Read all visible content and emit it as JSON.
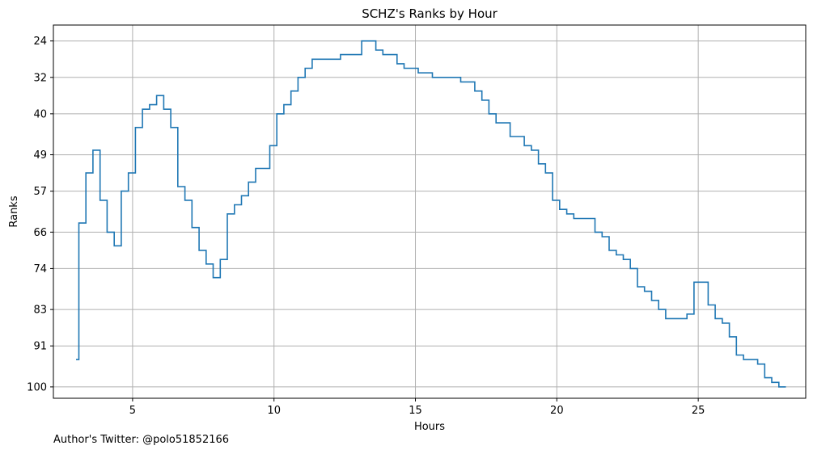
{
  "footer": {
    "author_note": "Author's Twitter: @polo51852166"
  },
  "chart_data": {
    "type": "line",
    "step": true,
    "title": "SCHZ's Ranks by Hour",
    "xlabel": "Hours",
    "ylabel": "Ranks",
    "xlim": [
      2.2,
      28.8
    ],
    "ylim": [
      102.5,
      20.5
    ],
    "y_inverted": true,
    "grid": true,
    "line_color": "#1f77b4",
    "xticks": [
      5,
      10,
      15,
      20,
      25
    ],
    "yticks": [
      24,
      32,
      40,
      49,
      57,
      66,
      74,
      83,
      91,
      100
    ],
    "series": [
      {
        "x": [
          3.0,
          3.1,
          3.35,
          3.6,
          3.85,
          4.1,
          4.35,
          4.6,
          4.85,
          5.1,
          5.35,
          5.6,
          5.85,
          6.1,
          6.35,
          6.6,
          6.85,
          7.1,
          7.35,
          7.6,
          7.85,
          8.1,
          8.35,
          8.6,
          8.85,
          9.1,
          9.35,
          9.85,
          10.1,
          10.35,
          10.6,
          10.85,
          11.1,
          11.35,
          11.85,
          12.35,
          13.1,
          13.6,
          13.85,
          14.35,
          14.6,
          15.1,
          15.6,
          16.6,
          17.1,
          17.35,
          17.6,
          17.85,
          18.35,
          18.85,
          19.1,
          19.35,
          19.6,
          19.85,
          20.1,
          20.35,
          20.6,
          21.35,
          21.6,
          21.85,
          22.1,
          22.35,
          22.6,
          22.85,
          23.1,
          23.35,
          23.6,
          23.85,
          24.6,
          24.85,
          25.35,
          25.6,
          25.85,
          26.1,
          26.35,
          26.6,
          27.1,
          27.35,
          27.6,
          27.85,
          28.1
        ],
        "y": [
          94,
          64,
          53,
          48,
          59,
          66,
          69,
          57,
          53,
          43,
          39,
          38,
          36,
          39,
          43,
          56,
          59,
          65,
          70,
          73,
          76,
          72,
          62,
          60,
          58,
          55,
          52,
          47,
          40,
          38,
          35,
          32,
          30,
          28,
          28,
          27,
          24,
          26,
          27,
          29,
          30,
          31,
          32,
          33,
          35,
          37,
          40,
          42,
          45,
          47,
          48,
          51,
          53,
          59,
          61,
          62,
          63,
          66,
          67,
          70,
          71,
          72,
          74,
          78,
          79,
          81,
          83,
          85,
          84,
          77,
          82,
          85,
          86,
          89,
          93,
          94,
          95,
          98,
          99,
          100,
          100
        ]
      }
    ]
  }
}
